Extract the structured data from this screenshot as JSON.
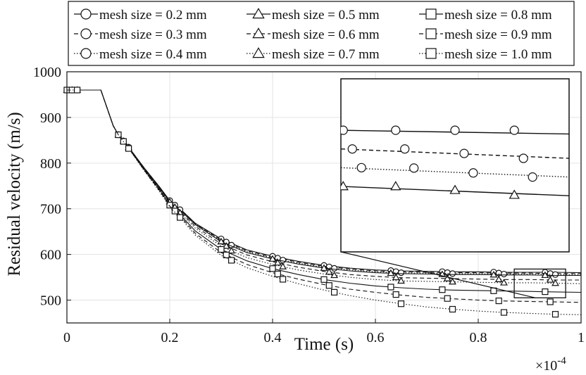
{
  "chart_data": {
    "type": "line",
    "xlabel": "Time (s)",
    "ylabel": "Residual velocity (m/s)",
    "x_exponent_label": "×10",
    "x_exponent_power": "-4",
    "xlim": [
      0,
      1
    ],
    "ylim": [
      450,
      1000
    ],
    "xticks": [
      0,
      0.2,
      0.4,
      0.6,
      0.8,
      1
    ],
    "xtick_labels": [
      "0",
      "0.2",
      "0.4",
      "0.6",
      "0.8",
      "1"
    ],
    "yticks": [
      500,
      600,
      700,
      800,
      900,
      1000
    ],
    "ytick_labels": [
      "500",
      "600",
      "700",
      "800",
      "900",
      "1000"
    ],
    "grid": true,
    "legend_placement": "top",
    "inset": {
      "type": "zoom",
      "source_xlim": [
        0.87,
        0.97
      ],
      "source_ylim": [
        505,
        568
      ],
      "placement": "upper-right"
    },
    "x": [
      0,
      0.02,
      0.04,
      0.066,
      0.09,
      0.1,
      0.12,
      0.15,
      0.18,
      0.2,
      0.22,
      0.25,
      0.3,
      0.35,
      0.4,
      0.45,
      0.5,
      0.55,
      0.6,
      0.65,
      0.7,
      0.75,
      0.8,
      0.85,
      0.9,
      0.95,
      1.0
    ],
    "series": [
      {
        "name": "mesh size = 0.2 mm",
        "marker": "circle",
        "dash": "solid",
        "values": [
          960,
          960,
          960,
          960,
          882,
          862,
          835,
          790,
          748,
          718,
          700,
          668,
          634,
          610,
          596,
          585,
          576,
          570,
          566,
          564,
          563,
          562,
          562,
          561,
          561,
          561,
          560
        ]
      },
      {
        "name": "mesh size = 0.3 mm",
        "marker": "circle",
        "dash": "dashed",
        "values": [
          960,
          960,
          960,
          960,
          882,
          862,
          835,
          790,
          748,
          717,
          699,
          667,
          632,
          608,
          594,
          583,
          574,
          568,
          564,
          562,
          561,
          560,
          560,
          559,
          559,
          558,
          558
        ]
      },
      {
        "name": "mesh size = 0.4 mm",
        "marker": "circle",
        "dash": "dotted",
        "values": [
          960,
          960,
          960,
          960,
          882,
          862,
          835,
          789,
          747,
          716,
          698,
          666,
          630,
          606,
          592,
          581,
          572,
          566,
          562,
          560,
          559,
          558,
          558,
          557,
          557,
          556,
          556
        ]
      },
      {
        "name": "mesh size = 0.5 mm",
        "marker": "triangle",
        "dash": "solid",
        "values": [
          960,
          960,
          960,
          960,
          882,
          862,
          834,
          789,
          746,
          715,
          697,
          665,
          628,
          604,
          590,
          579,
          570,
          564,
          560,
          558,
          557,
          556,
          556,
          555,
          555,
          554,
          554
        ]
      },
      {
        "name": "mesh size = 0.6 mm",
        "marker": "triangle",
        "dash": "dashed",
        "values": [
          960,
          960,
          960,
          960,
          882,
          862,
          834,
          788,
          745,
          713,
          694,
          661,
          623,
          599,
          584,
          572,
          563,
          556,
          552,
          549,
          548,
          547,
          546,
          545,
          545,
          544,
          544
        ]
      },
      {
        "name": "mesh size = 0.7 mm",
        "marker": "triangle",
        "dash": "dotted",
        "values": [
          960,
          960,
          960,
          960,
          882,
          862,
          834,
          787,
          744,
          711,
          691,
          657,
          618,
          593,
          578,
          566,
          557,
          550,
          545,
          542,
          541,
          540,
          539,
          538,
          538,
          537,
          536
        ]
      },
      {
        "name": "mesh size = 0.8 mm",
        "marker": "square",
        "dash": "solid",
        "values": [
          960,
          960,
          960,
          960,
          882,
          862,
          833,
          786,
          742,
          708,
          687,
          651,
          611,
          586,
          569,
          556,
          545,
          537,
          531,
          527,
          524,
          522,
          521,
          520,
          519,
          518,
          517
        ]
      },
      {
        "name": "mesh size = 0.9 mm",
        "marker": "square",
        "dash": "dashed",
        "values": [
          960,
          960,
          960,
          960,
          882,
          862,
          833,
          785,
          740,
          706,
          684,
          646,
          604,
          578,
          560,
          546,
          534,
          524,
          517,
          511,
          506,
          503,
          500,
          498,
          497,
          496,
          495
        ]
      },
      {
        "name": "mesh size = 1.0 mm",
        "marker": "square",
        "dash": "dotted",
        "values": [
          960,
          960,
          960,
          960,
          882,
          862,
          832,
          784,
          738,
          704,
          681,
          642,
          598,
          571,
          552,
          536,
          522,
          510,
          500,
          492,
          485,
          480,
          476,
          473,
          471,
          469,
          468
        ]
      }
    ]
  }
}
